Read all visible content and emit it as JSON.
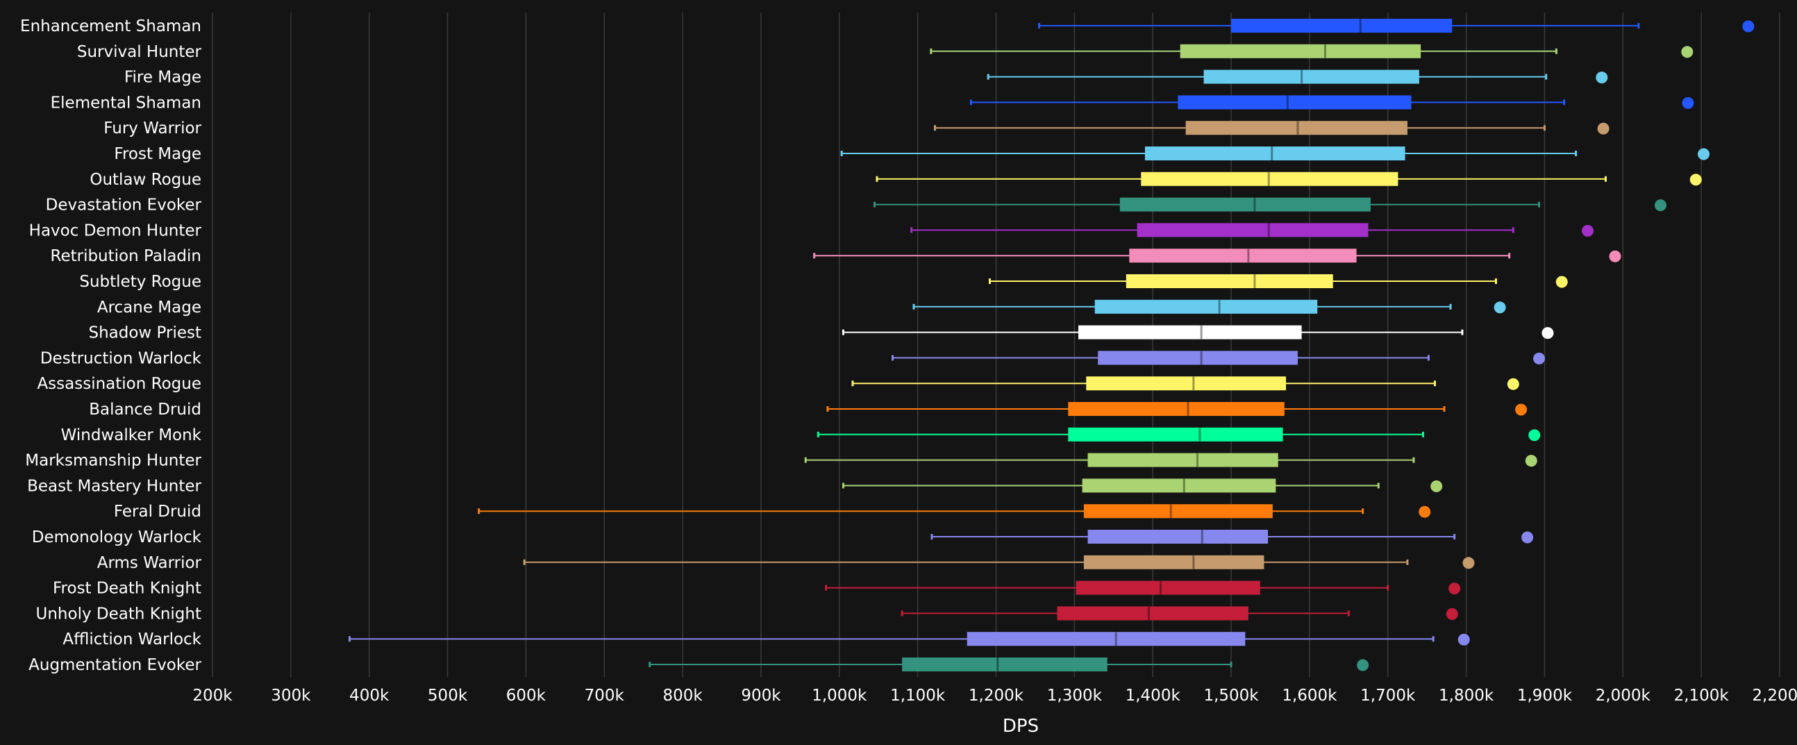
{
  "chart_data": {
    "type": "box",
    "title": "",
    "xlabel": "DPS",
    "ylabel": "",
    "xlim": [
      200000,
      2200000
    ],
    "x_ticks": [
      200000,
      300000,
      400000,
      500000,
      600000,
      700000,
      800000,
      900000,
      1000000,
      1100000,
      1200000,
      1300000,
      1400000,
      1500000,
      1600000,
      1700000,
      1800000,
      1900000,
      2000000,
      2100000,
      2200000
    ],
    "x_tick_labels": [
      "200k",
      "300k",
      "400k",
      "500k",
      "600k",
      "700k",
      "800k",
      "900k",
      "1,000k",
      "1,100k",
      "1,200k",
      "1,300k",
      "1,400k",
      "1,500k",
      "1,600k",
      "1,700k",
      "1,800k",
      "1,900k",
      "2,000k",
      "2,100k",
      "2,200k"
    ],
    "grid": "vertical",
    "legend": "none",
    "categories": [
      {
        "name": "Enhancement Shaman",
        "color": "#2457ff",
        "min": 1255000,
        "q1": 1500000,
        "median": 1665000,
        "q3": 1782000,
        "max": 2020000,
        "outlier": 2160000
      },
      {
        "name": "Survival Hunter",
        "color": "#aad372",
        "min": 1117000,
        "q1": 1435000,
        "median": 1620000,
        "q3": 1742000,
        "max": 1915000,
        "outlier": 2082000
      },
      {
        "name": "Fire Mage",
        "color": "#68ccef",
        "min": 1190000,
        "q1": 1465000,
        "median": 1590000,
        "q3": 1740000,
        "max": 1902000,
        "outlier": 1973000
      },
      {
        "name": "Elemental Shaman",
        "color": "#2457ff",
        "min": 1168000,
        "q1": 1432000,
        "median": 1572000,
        "q3": 1730000,
        "max": 1925000,
        "outlier": 2083000
      },
      {
        "name": "Fury Warrior",
        "color": "#c69b6d",
        "min": 1122000,
        "q1": 1442000,
        "median": 1585000,
        "q3": 1725000,
        "max": 1900000,
        "outlier": 1975000
      },
      {
        "name": "Frost Mage",
        "color": "#68ccef",
        "min": 1003000,
        "q1": 1390000,
        "median": 1552000,
        "q3": 1722000,
        "max": 1940000,
        "outlier": 2103000
      },
      {
        "name": "Outlaw Rogue",
        "color": "#fff468",
        "min": 1048000,
        "q1": 1385000,
        "median": 1548000,
        "q3": 1713000,
        "max": 1978000,
        "outlier": 2093000
      },
      {
        "name": "Devastation Evoker",
        "color": "#33937f",
        "min": 1045000,
        "q1": 1358000,
        "median": 1530000,
        "q3": 1678000,
        "max": 1893000,
        "outlier": 2048000
      },
      {
        "name": "Havoc Demon Hunter",
        "color": "#a330c9",
        "min": 1092000,
        "q1": 1380000,
        "median": 1548000,
        "q3": 1675000,
        "max": 1860000,
        "outlier": 1955000
      },
      {
        "name": "Retribution Paladin",
        "color": "#f48cba",
        "min": 968000,
        "q1": 1370000,
        "median": 1522000,
        "q3": 1660000,
        "max": 1855000,
        "outlier": 1990000
      },
      {
        "name": "Subtlety Rogue",
        "color": "#fff468",
        "min": 1192000,
        "q1": 1366000,
        "median": 1530000,
        "q3": 1630000,
        "max": 1838000,
        "outlier": 1922000
      },
      {
        "name": "Arcane Mage",
        "color": "#68ccef",
        "min": 1095000,
        "q1": 1326000,
        "median": 1485000,
        "q3": 1610000,
        "max": 1780000,
        "outlier": 1843000
      },
      {
        "name": "Shadow Priest",
        "color": "#ffffff",
        "min": 1005000,
        "q1": 1305000,
        "median": 1462000,
        "q3": 1590000,
        "max": 1795000,
        "outlier": 1904000
      },
      {
        "name": "Destruction Warlock",
        "color": "#8788ee",
        "min": 1068000,
        "q1": 1330000,
        "median": 1462000,
        "q3": 1585000,
        "max": 1752000,
        "outlier": 1893000
      },
      {
        "name": "Assassination Rogue",
        "color": "#fff468",
        "min": 1017000,
        "q1": 1315000,
        "median": 1452000,
        "q3": 1570000,
        "max": 1760000,
        "outlier": 1860000
      },
      {
        "name": "Balance Druid",
        "color": "#ff7c0a",
        "min": 985000,
        "q1": 1292000,
        "median": 1445000,
        "q3": 1568000,
        "max": 1772000,
        "outlier": 1870000
      },
      {
        "name": "Windwalker Monk",
        "color": "#00ff98",
        "min": 973000,
        "q1": 1292000,
        "median": 1460000,
        "q3": 1566000,
        "max": 1745000,
        "outlier": 1887000
      },
      {
        "name": "Marksmanship Hunter",
        "color": "#aad372",
        "min": 957000,
        "q1": 1317000,
        "median": 1457000,
        "q3": 1560000,
        "max": 1733000,
        "outlier": 1883000
      },
      {
        "name": "Beast Mastery Hunter",
        "color": "#aad372",
        "min": 1005000,
        "q1": 1310000,
        "median": 1440000,
        "q3": 1557000,
        "max": 1688000,
        "outlier": 1762000
      },
      {
        "name": "Feral Druid",
        "color": "#ff7c0a",
        "min": 540000,
        "q1": 1312000,
        "median": 1423000,
        "q3": 1553000,
        "max": 1668000,
        "outlier": 1747000
      },
      {
        "name": "Demonology Warlock",
        "color": "#8788ee",
        "min": 1118000,
        "q1": 1317000,
        "median": 1463000,
        "q3": 1547000,
        "max": 1785000,
        "outlier": 1878000
      },
      {
        "name": "Arms Warrior",
        "color": "#c69b6d",
        "min": 598000,
        "q1": 1312000,
        "median": 1452000,
        "q3": 1542000,
        "max": 1725000,
        "outlier": 1803000
      },
      {
        "name": "Frost Death Knight",
        "color": "#c41e3a",
        "min": 983000,
        "q1": 1302000,
        "median": 1410000,
        "q3": 1537000,
        "max": 1700000,
        "outlier": 1785000
      },
      {
        "name": "Unholy Death Knight",
        "color": "#c41e3a",
        "min": 1080000,
        "q1": 1278000,
        "median": 1395000,
        "q3": 1522000,
        "max": 1650000,
        "outlier": 1782000
      },
      {
        "name": "Affliction Warlock",
        "color": "#8788ee",
        "min": 375000,
        "q1": 1163000,
        "median": 1353000,
        "q3": 1518000,
        "max": 1758000,
        "outlier": 1797000
      },
      {
        "name": "Augmentation Evoker",
        "color": "#33937f",
        "min": 758000,
        "q1": 1080000,
        "median": 1202000,
        "q3": 1342000,
        "max": 1500000,
        "outlier": 1668000
      }
    ]
  },
  "colors": {
    "background": "#141414",
    "grid": "#3a3a3a",
    "text": "#ffffff"
  }
}
